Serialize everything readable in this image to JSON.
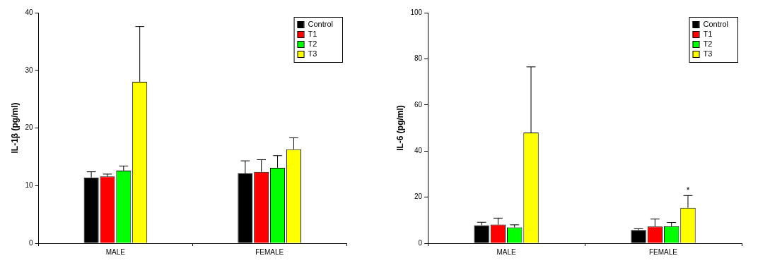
{
  "chart_data": [
    {
      "type": "bar",
      "y_label": "IL-1β (pg/ml)",
      "categories": [
        "MALE",
        "FEMALE"
      ],
      "series": [
        {
          "name": "Control",
          "color": "#000000",
          "values": [
            11.4,
            12.1
          ],
          "errors": [
            1.0,
            2.2
          ]
        },
        {
          "name": "T1",
          "color": "#ff0000",
          "values": [
            11.6,
            12.4
          ],
          "errors": [
            0.4,
            2.1
          ]
        },
        {
          "name": "T2",
          "color": "#00ff00",
          "values": [
            12.6,
            13.1
          ],
          "errors": [
            0.8,
            2.1
          ]
        },
        {
          "name": "T3",
          "color": "#ffff00",
          "values": [
            28.0,
            16.3
          ],
          "errors": [
            9.6,
            2.0
          ]
        }
      ],
      "ylim": [
        0,
        40
      ],
      "yticks": [
        0,
        10,
        20,
        30,
        40
      ],
      "grid": false,
      "legend": "upper right"
    },
    {
      "type": "bar",
      "y_label": "IL-6 (pg/ml)",
      "categories": [
        "MALE",
        "FEMALE"
      ],
      "series": [
        {
          "name": "Control",
          "color": "#000000",
          "values": [
            7.8,
            5.7
          ],
          "errors": [
            1.3,
            0.6
          ]
        },
        {
          "name": "T1",
          "color": "#ff0000",
          "values": [
            8.1,
            7.3
          ],
          "errors": [
            2.8,
            3.2
          ]
        },
        {
          "name": "T2",
          "color": "#00ff00",
          "values": [
            6.9,
            7.4
          ],
          "errors": [
            1.1,
            1.6
          ]
        },
        {
          "name": "T3",
          "color": "#ffff00",
          "values": [
            48.0,
            15.4
          ],
          "errors": [
            28.5,
            5.3
          ]
        }
      ],
      "ylim": [
        0,
        100
      ],
      "yticks": [
        0,
        20,
        40,
        60,
        80,
        100
      ],
      "grid": false,
      "legend": "upper right",
      "annotations": [
        {
          "text": "*",
          "category": "FEMALE",
          "series": "T3"
        }
      ]
    }
  ]
}
